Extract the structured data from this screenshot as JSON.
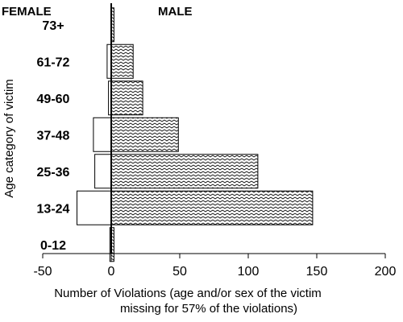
{
  "chart_data": {
    "type": "bar",
    "orientation": "horizontal",
    "layout": "population-pyramid",
    "categories": [
      "73+",
      "61-72",
      "49-60",
      "37-48",
      "25-36",
      "13-24",
      "0-12"
    ],
    "series": [
      {
        "name": "FEMALE",
        "values": [
          0,
          3,
          2,
          13,
          12,
          25,
          1
        ],
        "pattern": "none",
        "direction": "negative"
      },
      {
        "name": "MALE",
        "values": [
          2,
          16,
          23,
          49,
          107,
          147,
          2
        ],
        "pattern": "hatched",
        "direction": "positive"
      }
    ],
    "xlabel_line1": "Number of Violations (age and/or sex of the victim",
    "xlabel_line2": "missing for 57% of the violations)",
    "ylabel": "Age category of victim",
    "xticks": [
      -50,
      0,
      50,
      100,
      150,
      200
    ],
    "xlim": [
      -50,
      200
    ],
    "grid": false
  },
  "colors": {
    "bar_fill": "#ffffff",
    "stroke": "#000000",
    "hatch": "#000000"
  }
}
